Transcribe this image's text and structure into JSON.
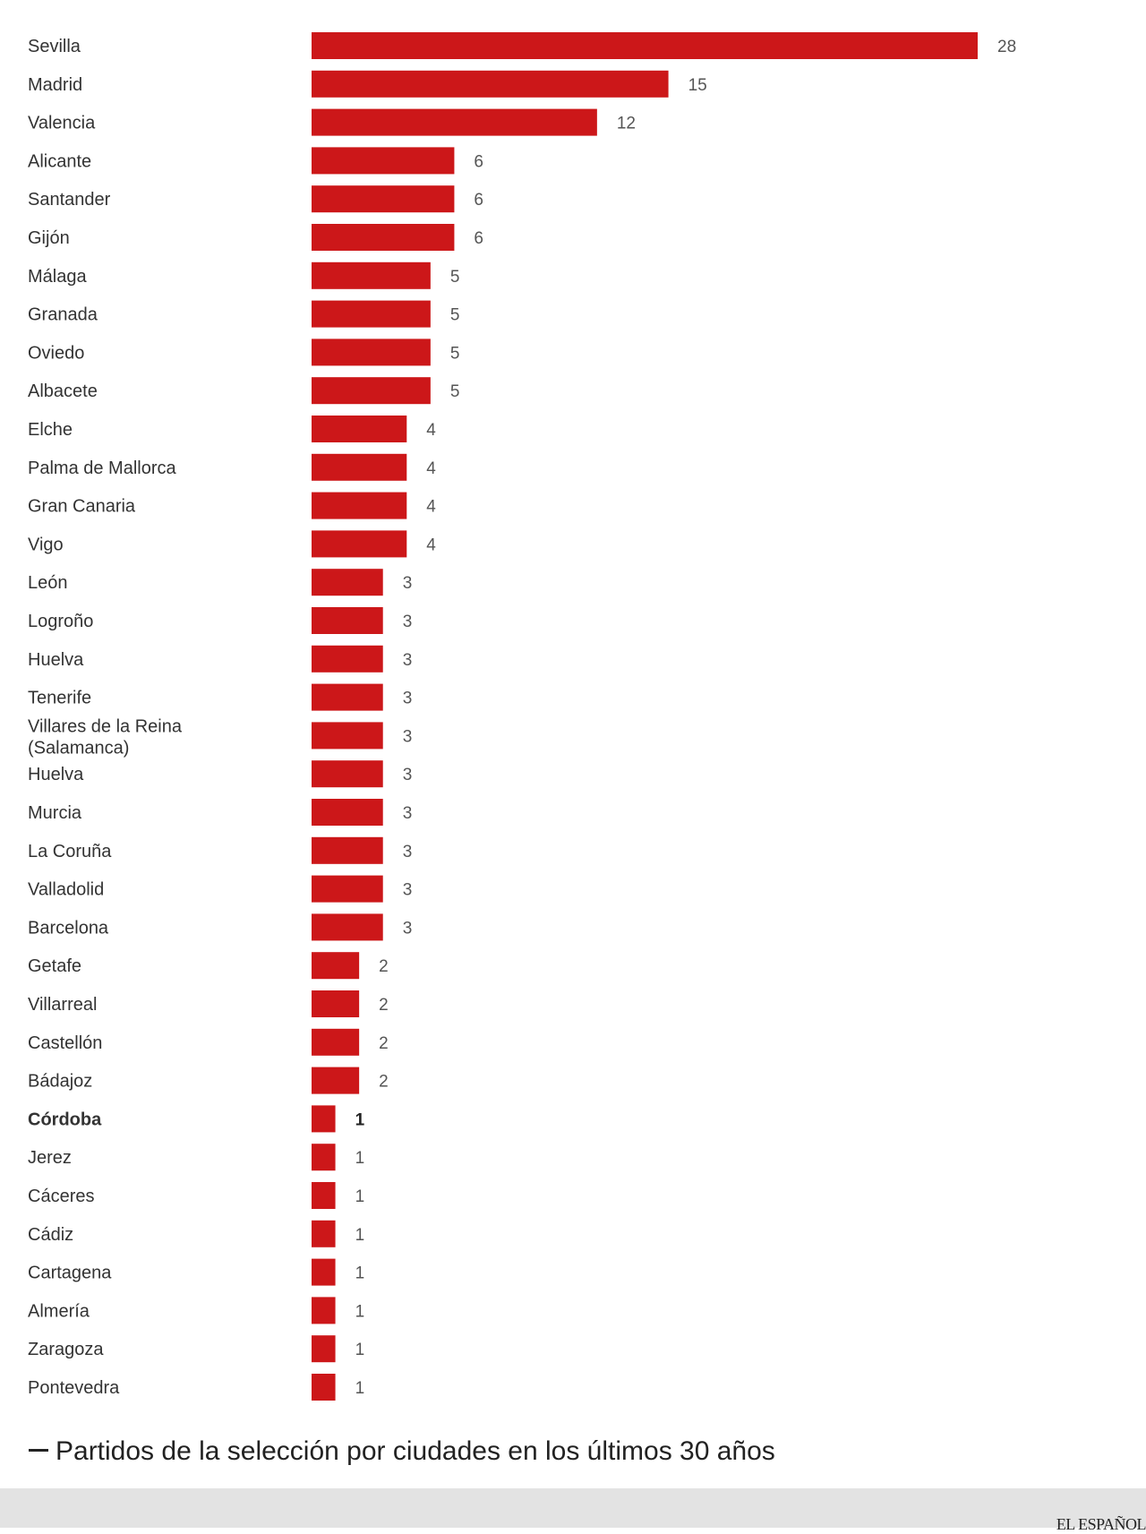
{
  "chart_data": {
    "type": "bar",
    "orientation": "horizontal",
    "title": "Partidos de la selección por ciudades en los últimos 30 años",
    "categories": [
      "Sevilla",
      "Madrid",
      "Valencia",
      "Alicante",
      "Santander",
      "Gijón",
      "Málaga",
      "Granada",
      "Oviedo",
      "Albacete",
      "Elche",
      "Palma de Mallorca",
      "Gran Canaria",
      "Vigo",
      "León",
      "Logroño",
      "Huelva",
      "Tenerife",
      "Villares de la Reina (Salamanca)",
      "Huelva",
      "Murcia",
      "La Coruña",
      "Valladolid",
      "Barcelona",
      "Getafe",
      "Villarreal",
      "Castellón",
      "Bádajoz",
      "Córdoba",
      "Jerez",
      "Cáceres",
      "Cádiz",
      "Cartagena",
      "Almería",
      "Zaragoza",
      "Pontevedra"
    ],
    "values": [
      28,
      15,
      12,
      6,
      6,
      6,
      5,
      5,
      5,
      5,
      4,
      4,
      4,
      4,
      3,
      3,
      3,
      3,
      3,
      3,
      3,
      3,
      3,
      3,
      2,
      2,
      2,
      2,
      1,
      1,
      1,
      1,
      1,
      1,
      1,
      1
    ],
    "xlim": [
      0,
      28
    ],
    "grid": false,
    "legend": "none",
    "highlighted_category": "Córdoba",
    "bar_color": "#cc1719",
    "highlight_bar_color": "#a80e10",
    "label_color": "#333333"
  },
  "caption": {
    "text": "Partidos de la selección por ciudades en los últimos 30 años"
  },
  "footer": {
    "brand": "EL ESPAÑOL"
  }
}
